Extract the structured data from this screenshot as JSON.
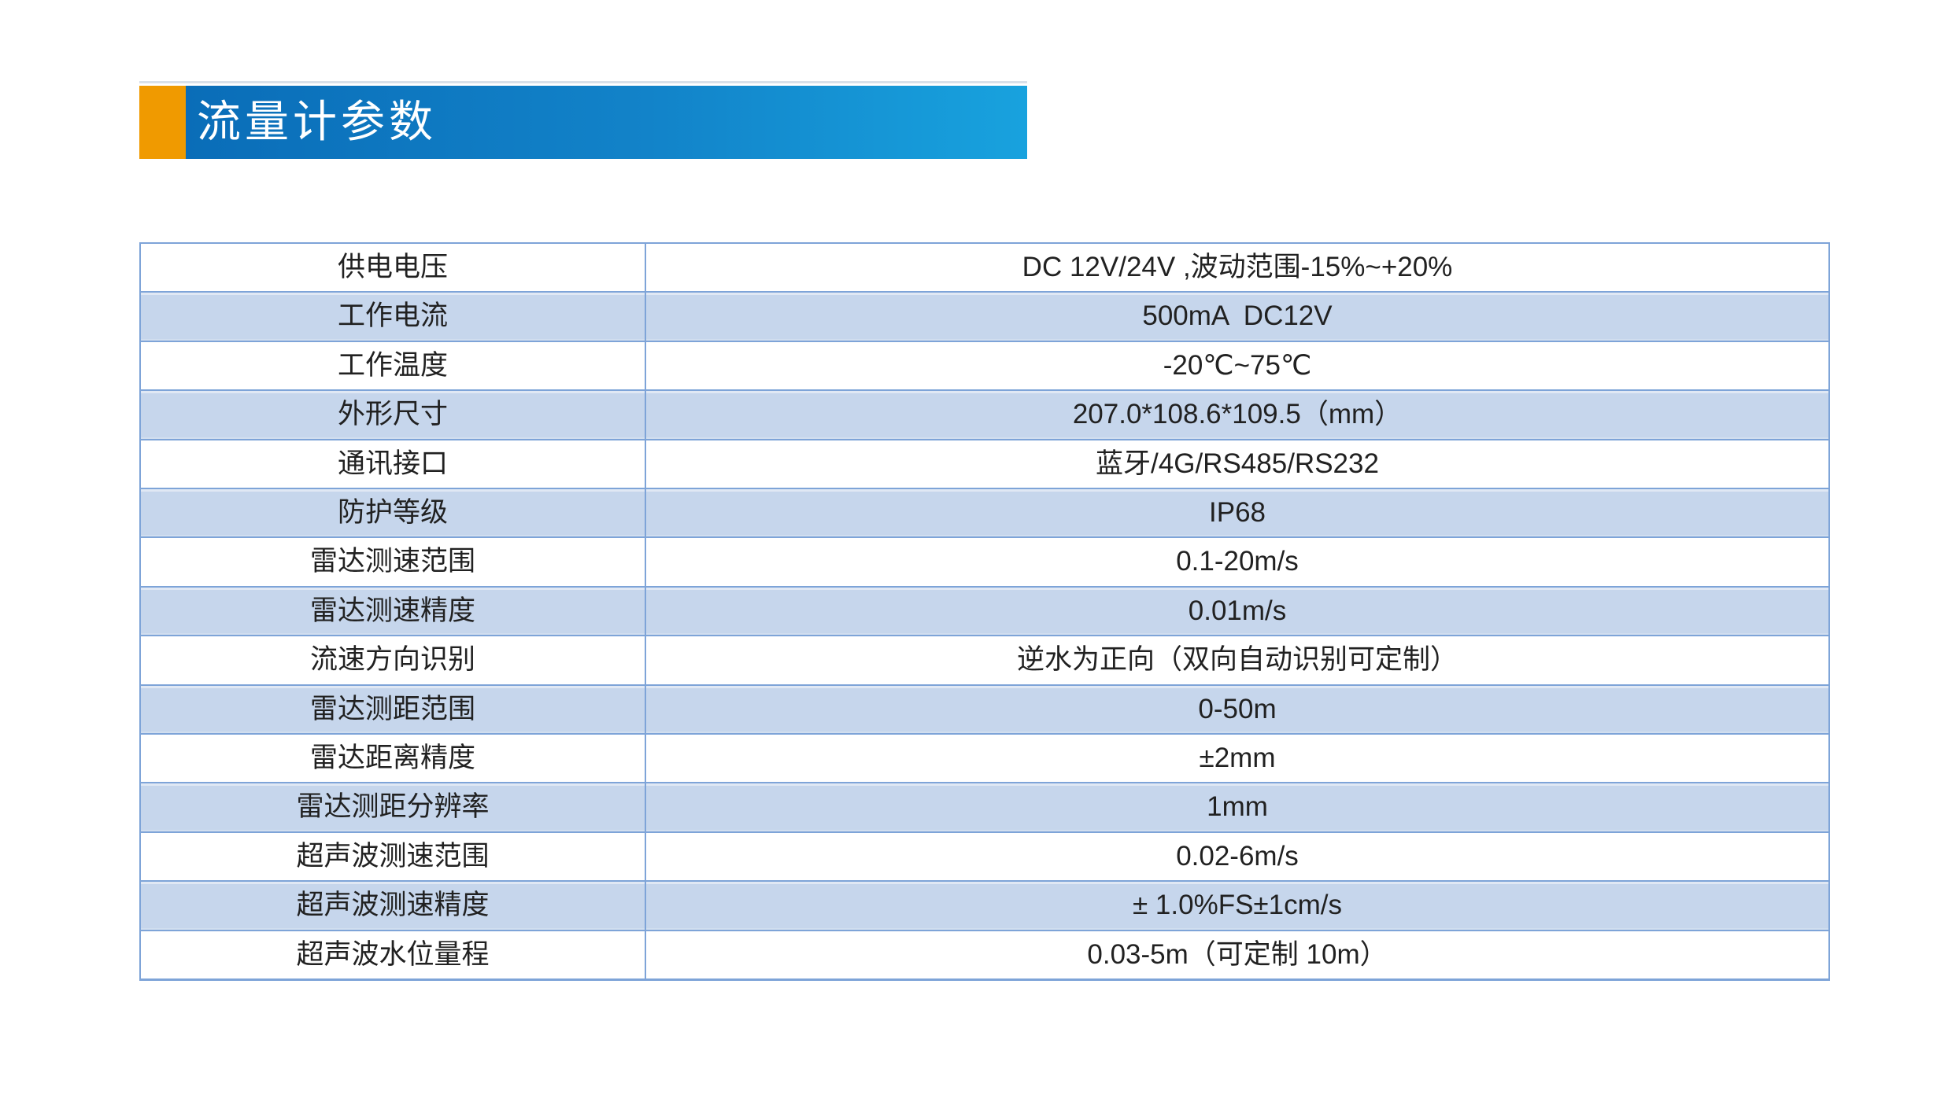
{
  "header": {
    "title": "流量计参数",
    "accent_color": "#F09A00",
    "banner_gradient_start": "#0A6DB8",
    "banner_gradient_end": "#18A2DE",
    "title_color": "#FFFFFF"
  },
  "table": {
    "border_color": "#7EA4D8",
    "alt_row_fill": "#C6D6EC",
    "text_color": "#212121",
    "rows": [
      {
        "label": "供电电压",
        "value": "DC 12V/24V ,波动范围-15%~+20%"
      },
      {
        "label": "工作电流",
        "value": "500mA  DC12V"
      },
      {
        "label": "工作温度",
        "value": "-20℃~75℃"
      },
      {
        "label": "外形尺寸",
        "value": "207.0*108.6*109.5（mm）"
      },
      {
        "label": "通讯接口",
        "value": "蓝牙/4G/RS485/RS232"
      },
      {
        "label": "防护等级",
        "value": "IP68"
      },
      {
        "label": "雷达测速范围",
        "value": "0.1-20m/s"
      },
      {
        "label": "雷达测速精度",
        "value": "0.01m/s"
      },
      {
        "label": "流速方向识别",
        "value": "逆水为正向（双向自动识别可定制）"
      },
      {
        "label": "雷达测距范围",
        "value": "0-50m"
      },
      {
        "label": "雷达距离精度",
        "value": "±2mm"
      },
      {
        "label": "雷达测距分辨率",
        "value": "1mm"
      },
      {
        "label": "超声波测速范围",
        "value": "0.02-6m/s"
      },
      {
        "label": "超声波测速精度",
        "value": "± 1.0%FS±1cm/s"
      },
      {
        "label": "超声波水位量程",
        "value": "0.03-5m（可定制 10m）"
      }
    ]
  }
}
